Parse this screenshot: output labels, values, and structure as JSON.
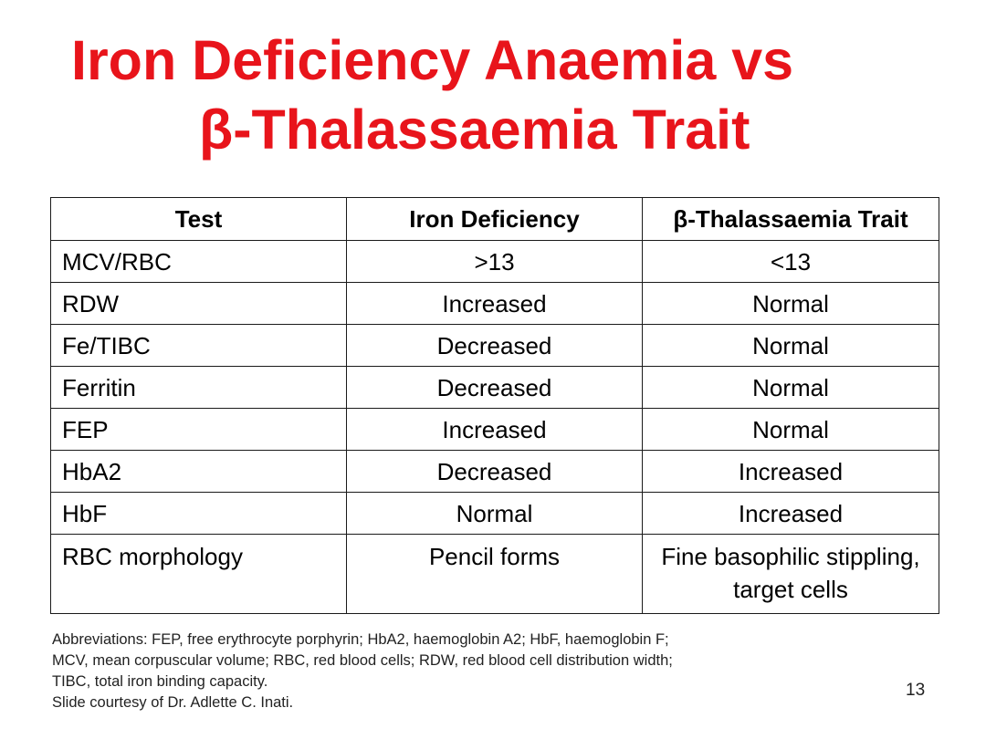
{
  "title": {
    "line1": "Iron Deficiency Anaemia vs",
    "line2": "β-Thalassaemia Trait"
  },
  "table": {
    "headers": [
      "Test",
      "Iron Deficiency",
      "β-Thalassaemia Trait"
    ],
    "rows": [
      [
        "MCV/RBC",
        ">13",
        "<13"
      ],
      [
        "RDW",
        "Increased",
        "Normal"
      ],
      [
        "Fe/TIBC",
        "Decreased",
        "Normal"
      ],
      [
        "Ferritin",
        "Decreased",
        "Normal"
      ],
      [
        "FEP",
        "Increased",
        "Normal"
      ],
      [
        "HbA2",
        "Decreased",
        "Increased"
      ],
      [
        "HbF",
        "Normal",
        "Increased"
      ],
      [
        "RBC morphology",
        "Pencil forms",
        "Fine basophilic stippling, target cells"
      ]
    ]
  },
  "footnotes": {
    "line1": "Abbreviations: FEP, free erythrocyte porphyrin; HbA2, haemoglobin A2; HbF, haemoglobin F;",
    "line2": "MCV, mean corpuscular volume; RBC, red blood cells; RDW, red blood cell distribution width;",
    "line3": "TIBC, total iron binding capacity.",
    "line4": "Slide courtesy of Dr. Adlette C. Inati."
  },
  "page_number": "13",
  "colors": {
    "title": "#e8141b",
    "border": "#1a1a1a"
  }
}
